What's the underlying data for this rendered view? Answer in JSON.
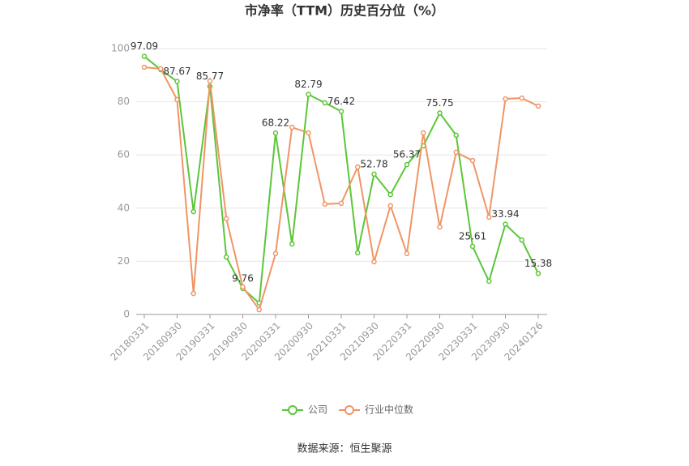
{
  "chart_data": {
    "type": "line",
    "title": "市净率（TTM）历史百分位（%）",
    "source": "数据来源：恒生聚源",
    "categories": [
      "20180331",
      null,
      "20180930",
      null,
      "20190331",
      null,
      "20190930",
      null,
      "20200331",
      null,
      "20200930",
      null,
      "20210331",
      null,
      "20210930",
      null,
      "20220331",
      null,
      "20220930",
      null,
      "20230331",
      null,
      "20230930",
      null,
      "20240126"
    ],
    "series": [
      {
        "name": "公司",
        "color": "#5cc639",
        "values": [
          97.09,
          92.1,
          87.67,
          38.7,
          85.77,
          21.6,
          9.76,
          4.3,
          68.22,
          26.5,
          82.79,
          79.6,
          76.42,
          23.2,
          52.78,
          45.1,
          56.37,
          63.4,
          75.75,
          67.4,
          25.61,
          12.5,
          33.94,
          28.0,
          15.38
        ],
        "value_labels": [
          "97.09",
          null,
          "87.67",
          null,
          "85.77",
          null,
          "9.76",
          null,
          "68.22",
          null,
          "82.79",
          null,
          "76.42",
          null,
          "52.78",
          null,
          "56.37",
          null,
          "75.75",
          null,
          "25.61",
          null,
          "33.94",
          null,
          "15.38"
        ]
      },
      {
        "name": "行业中位数",
        "color": "#f09566",
        "values": [
          93.0,
          92.4,
          80.8,
          7.9,
          87.8,
          36.0,
          10.4,
          1.8,
          22.9,
          70.4,
          68.3,
          41.5,
          41.8,
          55.5,
          19.8,
          40.9,
          22.9,
          68.3,
          32.9,
          61.0,
          57.9,
          36.6,
          81.1,
          81.4,
          78.4
        ]
      }
    ],
    "ylim": [
      0,
      100
    ],
    "yticks": [
      0,
      20,
      40,
      60,
      80,
      100
    ],
    "grid": true,
    "legend": "bottom"
  }
}
